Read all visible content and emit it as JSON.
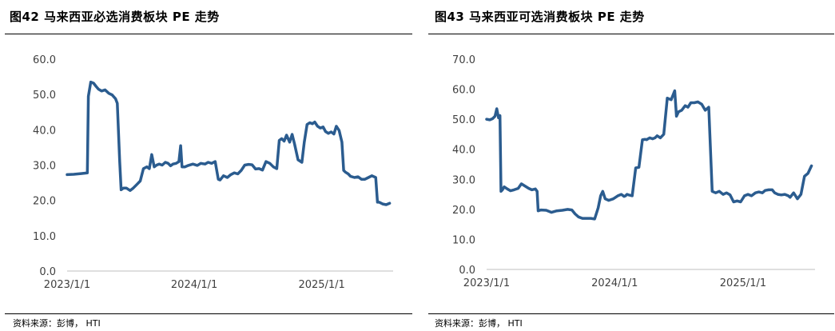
{
  "panels": [
    {
      "title": "图42 马来西亚必选消费板块 PE 走势",
      "source": "资料来源：彭博， HTI"
    },
    {
      "title": "图43 马来西亚可选消费板块 PE 走势",
      "source": "资料来源：彭博， HTI"
    }
  ],
  "colors": {
    "line": "#2B5C8F",
    "axis": "#BFBFBF",
    "text": "#404040"
  },
  "chart_data": [
    {
      "type": "line",
      "title": "图42 马来西亚必选消费板块 PE 走势",
      "xlabel": "",
      "ylabel": "",
      "ylim": [
        0,
        60
      ],
      "yticks": [
        "0.0",
        "10.0",
        "20.0",
        "30.0",
        "40.0",
        "50.0",
        "60.0"
      ],
      "xticks": [
        {
          "date": "2023-01-01",
          "label": "2023/1/1"
        },
        {
          "date": "2024-01-01",
          "label": "2024/1/1"
        },
        {
          "date": "2025-01-01",
          "label": "2025/1/1"
        }
      ],
      "xlim": [
        "2023-01-01",
        "2025-07-25"
      ],
      "grid": false,
      "series": [
        {
          "x": [
            "2023-01-01",
            "2023-01-20",
            "2023-02-10",
            "2023-02-28",
            "2023-03-03",
            "2023-03-10",
            "2023-03-18",
            "2023-03-25",
            "2023-04-01",
            "2023-04-10",
            "2023-04-20",
            "2023-05-01",
            "2023-05-10",
            "2023-05-20",
            "2023-05-25",
            "2023-06-01",
            "2023-06-05",
            "2023-06-12",
            "2023-06-20",
            "2023-07-01",
            "2023-07-10",
            "2023-07-20",
            "2023-07-30",
            "2023-08-08",
            "2023-08-18",
            "2023-08-25",
            "2023-09-01",
            "2023-09-08",
            "2023-09-15",
            "2023-09-22",
            "2023-10-01",
            "2023-10-10",
            "2023-10-18",
            "2023-10-25",
            "2023-11-01",
            "2023-11-10",
            "2023-11-18",
            "2023-11-23",
            "2023-11-27",
            "2023-12-05",
            "2023-12-15",
            "2023-12-28",
            "2024-01-10",
            "2024-01-20",
            "2024-02-01",
            "2024-02-10",
            "2024-02-20",
            "2024-03-01",
            "2024-03-10",
            "2024-03-15",
            "2024-03-25",
            "2024-04-05",
            "2024-04-15",
            "2024-04-25",
            "2024-05-05",
            "2024-05-15",
            "2024-05-25",
            "2024-06-05",
            "2024-06-15",
            "2024-06-25",
            "2024-07-05",
            "2024-07-15",
            "2024-07-25",
            "2024-08-05",
            "2024-08-15",
            "2024-08-25",
            "2024-09-01",
            "2024-09-08",
            "2024-09-15",
            "2024-09-22",
            "2024-10-01",
            "2024-10-08",
            "2024-10-15",
            "2024-10-25",
            "2024-11-05",
            "2024-11-12",
            "2024-11-20",
            "2024-11-28",
            "2024-12-05",
            "2024-12-12",
            "2024-12-20",
            "2024-12-28",
            "2025-01-05",
            "2025-01-12",
            "2025-01-20",
            "2025-01-28",
            "2025-02-05",
            "2025-02-12",
            "2025-02-20",
            "2025-02-28",
            "2025-03-05",
            "2025-03-10",
            "2025-03-18",
            "2025-03-25",
            "2025-04-05",
            "2025-04-15",
            "2025-04-25",
            "2025-05-05",
            "2025-05-15",
            "2025-05-25",
            "2025-06-05",
            "2025-06-10",
            "2025-06-15",
            "2025-06-25",
            "2025-07-05",
            "2025-07-15"
          ],
          "values": [
            27.3,
            27.4,
            27.6,
            27.8,
            49.5,
            53.5,
            53.2,
            52.3,
            51.5,
            51.0,
            51.3,
            50.3,
            49.9,
            48.8,
            47.5,
            31.0,
            23.0,
            23.5,
            23.5,
            22.8,
            23.5,
            24.5,
            25.5,
            29.0,
            29.5,
            29.0,
            33.0,
            29.5,
            30.0,
            30.3,
            30.0,
            30.8,
            30.5,
            29.8,
            30.3,
            30.5,
            31.0,
            35.5,
            29.5,
            29.5,
            29.9,
            30.3,
            29.9,
            30.5,
            30.3,
            30.8,
            30.5,
            31.0,
            26.0,
            25.8,
            27.0,
            26.5,
            27.3,
            27.8,
            27.5,
            28.5,
            30.0,
            30.2,
            30.1,
            28.9,
            29.0,
            28.6,
            31.0,
            30.5,
            29.5,
            29.0,
            37.0,
            37.5,
            36.8,
            38.5,
            36.5,
            38.7,
            36.0,
            31.5,
            30.8,
            36.5,
            41.5,
            42.0,
            41.7,
            42.2,
            41.0,
            40.5,
            40.8,
            39.5,
            39.0,
            39.4,
            38.8,
            41.0,
            39.8,
            36.5,
            28.5,
            28.0,
            27.5,
            26.8,
            26.5,
            26.7,
            26.0,
            26.0,
            26.5,
            27.0,
            26.5,
            19.5,
            19.5,
            19.0,
            18.8,
            19.2
          ]
        }
      ]
    },
    {
      "type": "line",
      "title": "图43 马来西亚可选消费板块 PE 走势",
      "xlabel": "",
      "ylabel": "",
      "ylim": [
        0,
        70
      ],
      "yticks": [
        "0.0",
        "10.0",
        "20.0",
        "30.0",
        "40.0",
        "50.0",
        "60.0",
        "70.0"
      ],
      "xticks": [
        {
          "date": "2023-01-01",
          "label": "2023/1/1"
        },
        {
          "date": "2024-01-01",
          "label": "2024/1/1"
        },
        {
          "date": "2025-01-01",
          "label": "2025/1/1"
        }
      ],
      "xlim": [
        "2023-01-01",
        "2025-07-25"
      ],
      "grid": false,
      "series": [
        {
          "x": [
            "2023-01-01",
            "2023-01-10",
            "2023-01-18",
            "2023-01-25",
            "2023-01-30",
            "2023-02-04",
            "2023-02-08",
            "2023-02-11",
            "2023-02-15",
            "2023-02-20",
            "2023-03-01",
            "2023-03-10",
            "2023-03-20",
            "2023-04-01",
            "2023-04-10",
            "2023-04-20",
            "2023-05-01",
            "2023-05-10",
            "2023-05-20",
            "2023-05-25",
            "2023-05-28",
            "2023-06-05",
            "2023-06-20",
            "2023-07-05",
            "2023-07-20",
            "2023-08-05",
            "2023-08-20",
            "2023-09-01",
            "2023-09-10",
            "2023-09-20",
            "2023-10-01",
            "2023-10-12",
            "2023-10-25",
            "2023-11-05",
            "2023-11-15",
            "2023-11-22",
            "2023-11-28",
            "2023-12-05",
            "2023-12-15",
            "2023-12-28",
            "2024-01-10",
            "2024-01-20",
            "2024-01-28",
            "2024-02-01",
            "2024-02-05",
            "2024-02-10",
            "2024-02-20",
            "2024-03-01",
            "2024-03-10",
            "2024-03-20",
            "2024-03-28",
            "2024-04-01",
            "2024-04-05",
            "2024-04-10",
            "2024-04-18",
            "2024-04-25",
            "2024-05-01",
            "2024-05-10",
            "2024-05-20",
            "2024-05-30",
            "2024-06-10",
            "2024-06-20",
            "2024-06-25",
            "2024-07-01",
            "2024-07-10",
            "2024-07-20",
            "2024-07-28",
            "2024-08-05",
            "2024-08-15",
            "2024-08-25",
            "2024-09-05",
            "2024-09-15",
            "2024-09-25",
            "2024-10-05",
            "2024-10-15",
            "2024-10-25",
            "2024-11-05",
            "2024-11-15",
            "2024-11-25",
            "2024-12-05",
            "2024-12-15",
            "2024-12-25",
            "2025-01-05",
            "2025-01-15",
            "2025-01-25",
            "2025-02-05",
            "2025-02-15",
            "2025-02-25",
            "2025-03-05",
            "2025-03-15",
            "2025-03-25",
            "2025-04-01",
            "2025-04-10",
            "2025-04-20",
            "2025-04-30",
            "2025-05-10",
            "2025-05-15",
            "2025-05-25",
            "2025-06-05",
            "2025-06-15",
            "2025-06-25",
            "2025-07-05",
            "2025-07-15"
          ],
          "values": [
            50.0,
            49.8,
            50.2,
            51.0,
            53.5,
            50.5,
            51.2,
            26.0,
            26.5,
            27.5,
            26.8,
            26.2,
            26.5,
            27.0,
            28.5,
            27.8,
            27.0,
            26.5,
            26.8,
            26.0,
            19.5,
            19.8,
            19.7,
            19.0,
            19.5,
            19.7,
            20.0,
            19.8,
            18.5,
            17.5,
            17.0,
            17.0,
            17.0,
            16.8,
            20.5,
            24.5,
            26.0,
            23.5,
            23.0,
            23.5,
            24.5,
            25.0,
            24.3,
            24.5,
            25.0,
            24.8,
            24.5,
            33.8,
            34.0,
            43.2,
            43.3,
            43.2,
            43.5,
            43.8,
            43.5,
            43.8,
            44.5,
            43.8,
            45.0,
            57.0,
            56.5,
            59.5,
            51.0,
            52.5,
            53.0,
            54.5,
            54.0,
            55.5,
            55.5,
            55.8,
            55.0,
            53.0,
            54.0,
            26.0,
            25.5,
            26.0,
            25.0,
            25.5,
            24.8,
            22.5,
            22.8,
            22.5,
            24.5,
            25.0,
            24.5,
            25.5,
            25.8,
            25.5,
            26.3,
            26.5,
            26.5,
            25.5,
            25.0,
            24.8,
            25.0,
            24.5,
            24.0,
            25.5,
            23.5,
            25.0,
            31.0,
            32.0,
            34.5
          ]
        }
      ]
    }
  ]
}
